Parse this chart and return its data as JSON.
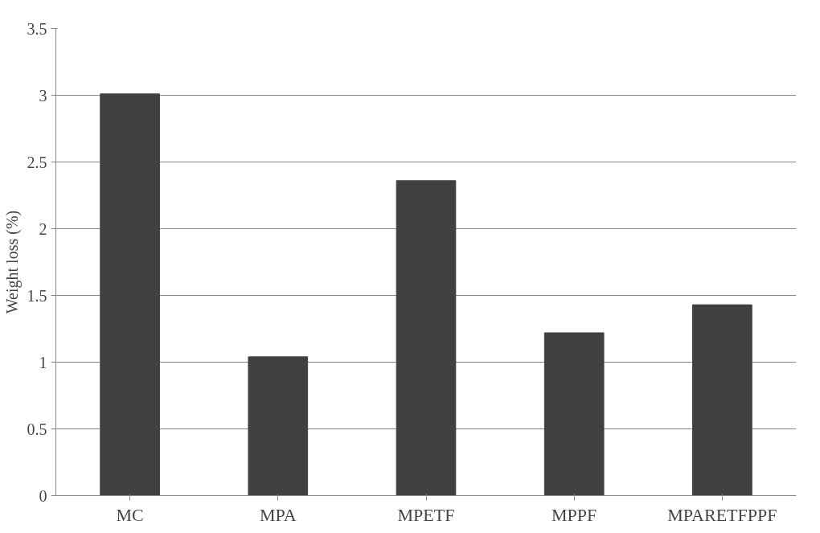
{
  "chart_data": {
    "type": "bar",
    "ylabel": "Weight loss (%)",
    "categories": [
      "MC",
      "MPA",
      "MPETF",
      "MPPF",
      "MPARETFPPF"
    ],
    "values": [
      3.01,
      1.04,
      2.36,
      1.22,
      1.43
    ],
    "color": "#404040",
    "ylim": [
      0,
      3.5
    ],
    "yticks": [
      0,
      0.5,
      1,
      1.5,
      2,
      2.5,
      3,
      3.5
    ],
    "grid": "y"
  }
}
